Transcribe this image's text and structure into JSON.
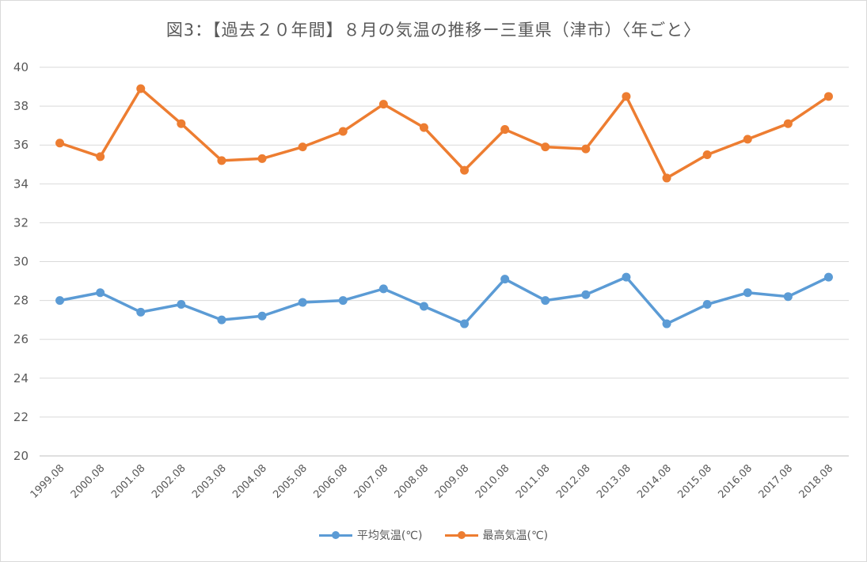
{
  "chart_data": {
    "type": "line",
    "title": "図3：【過去２０年間】８月の気温の推移ー三重県（津市）〈年ごと〉",
    "xlabel": "",
    "ylabel": "",
    "categories": [
      "1999.08",
      "2000.08",
      "2001.08",
      "2002.08",
      "2003.08",
      "2004.08",
      "2005.08",
      "2006.08",
      "2007.08",
      "2008.08",
      "2009.08",
      "2010.08",
      "2011.08",
      "2012.08",
      "2013.08",
      "2014.08",
      "2015.08",
      "2016.08",
      "2017.08",
      "2018.08"
    ],
    "series": [
      {
        "name": "平均気温(℃)",
        "color": "#5b9bd5",
        "values": [
          28.0,
          28.4,
          27.4,
          27.8,
          27.0,
          27.2,
          27.9,
          28.0,
          28.6,
          27.7,
          26.8,
          29.1,
          28.0,
          28.3,
          29.2,
          26.8,
          27.8,
          28.4,
          28.2,
          29.2
        ]
      },
      {
        "name": "最高気温(℃)",
        "color": "#ed7d31",
        "values": [
          36.1,
          35.4,
          38.9,
          37.1,
          35.2,
          35.3,
          35.9,
          36.7,
          38.1,
          36.9,
          34.7,
          36.8,
          35.9,
          35.8,
          38.5,
          34.3,
          35.5,
          36.3,
          37.1,
          38.5
        ]
      }
    ],
    "ylim": [
      20,
      40
    ],
    "yticks": [
      20,
      22,
      24,
      26,
      28,
      30,
      32,
      34,
      36,
      38,
      40
    ],
    "grid": true,
    "legend_position": "bottom"
  }
}
